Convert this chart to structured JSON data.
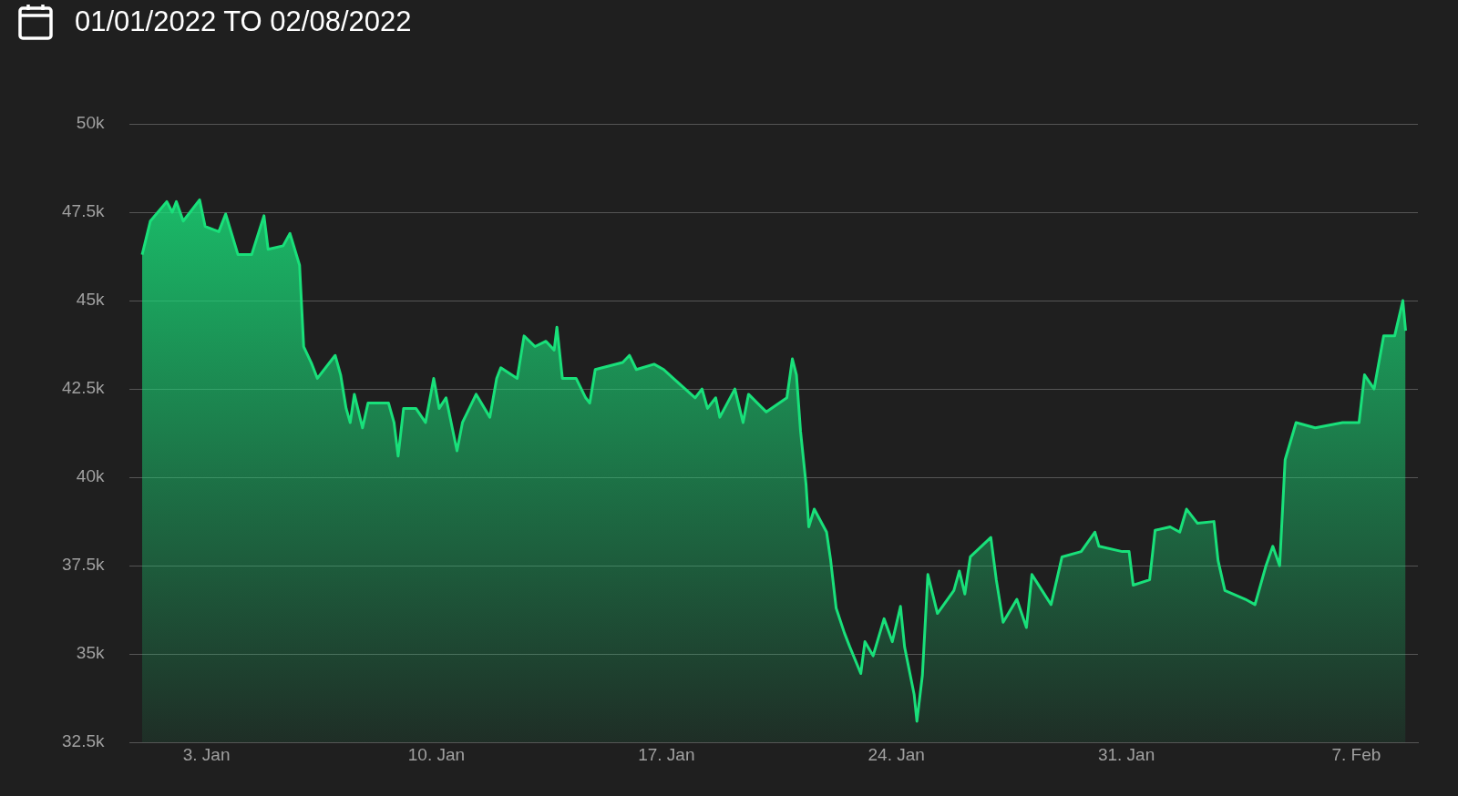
{
  "chart_data": {
    "type": "area",
    "title": "01/01/2022 TO 02/08/2022",
    "x": [
      "2022-01-01T01:00",
      "2022-01-01T07:00",
      "2022-01-01T19:00",
      "2022-01-01T23:00",
      "2022-01-02T02:00",
      "2022-01-02T07:00",
      "2022-01-02T19:00",
      "2022-01-02T23:00",
      "2022-01-03T09:00",
      "2022-01-03T14:00",
      "2022-01-03T23:00",
      "2022-01-04T09:00",
      "2022-01-04T18:00",
      "2022-01-04T21:00",
      "2022-01-05T08:00",
      "2022-01-05T13:00",
      "2022-01-05T20:00",
      "2022-01-05T23:00",
      "2022-01-06T05:00",
      "2022-01-06T09:00",
      "2022-01-06T22:00",
      "2022-01-07T02:00",
      "2022-01-07T06:00",
      "2022-01-07T09:00",
      "2022-01-07T12:00",
      "2022-01-07T18:00",
      "2022-01-07T22:00",
      "2022-01-08T13:00",
      "2022-01-08T17:00",
      "2022-01-08T20:00",
      "2022-01-09T00:00",
      "2022-01-09T09:00",
      "2022-01-09T16:00",
      "2022-01-09T22:00",
      "2022-01-10T02:00",
      "2022-01-10T07:00",
      "2022-01-10T15:00",
      "2022-01-10T19:00",
      "2022-01-11T05:00",
      "2022-01-11T15:00",
      "2022-01-11T20:00",
      "2022-01-11T23:00",
      "2022-01-12T11:00",
      "2022-01-12T16:00",
      "2022-01-13T00:00",
      "2022-01-13T08:00",
      "2022-01-13T14:00",
      "2022-01-13T16:00",
      "2022-01-13T20:00",
      "2022-01-14T06:00",
      "2022-01-14T13:00",
      "2022-01-14T16:00",
      "2022-01-14T20:00",
      "2022-01-15T16:00",
      "2022-01-15T21:00",
      "2022-01-16T02:00",
      "2022-01-16T15:00",
      "2022-01-16T22:00",
      "2022-01-17T05:00",
      "2022-01-17T21:00",
      "2022-01-18T02:00",
      "2022-01-18T06:00",
      "2022-01-18T12:00",
      "2022-01-18T15:00",
      "2022-01-19T02:00",
      "2022-01-19T08:00",
      "2022-01-19T12:00",
      "2022-01-20T01:00",
      "2022-01-20T16:00",
      "2022-01-20T20:00",
      "2022-01-20T23:00",
      "2022-01-21T02:00",
      "2022-01-21T06:00",
      "2022-01-21T08:00",
      "2022-01-21T12:00",
      "2022-01-21T21:00",
      "2022-01-22T00:00",
      "2022-01-22T04:00",
      "2022-01-22T10:00",
      "2022-01-22T14:00",
      "2022-01-22T22:00",
      "2022-01-23T01:00",
      "2022-01-23T07:00",
      "2022-01-23T15:00",
      "2022-01-23T21:00",
      "2022-01-24T03:00",
      "2022-01-24T06:00",
      "2022-01-24T13:00",
      "2022-01-24T15:00",
      "2022-01-24T19:00",
      "2022-01-24T23:00",
      "2022-01-25T06:00",
      "2022-01-25T18:00",
      "2022-01-25T22:00",
      "2022-01-26T02:00",
      "2022-01-26T06:00",
      "2022-01-26T21:00",
      "2022-01-27T01:00",
      "2022-01-27T06:00",
      "2022-01-27T16:00",
      "2022-01-27T23:00",
      "2022-01-28T03:00",
      "2022-01-28T17:00",
      "2022-01-29T01:00",
      "2022-01-29T15:00",
      "2022-01-30T01:00",
      "2022-01-30T04:00",
      "2022-01-30T21:00",
      "2022-01-31T02:00",
      "2022-01-31T05:00",
      "2022-01-31T17:00",
      "2022-01-31T21:00",
      "2022-02-01T08:00",
      "2022-02-01T15:00",
      "2022-02-01T20:00",
      "2022-02-02T04:00",
      "2022-02-02T16:00",
      "2022-02-02T19:00",
      "2022-02-03T00:00",
      "2022-02-03T15:00",
      "2022-02-03T22:00",
      "2022-02-04T06:00",
      "2022-02-04T11:00",
      "2022-02-04T16:00",
      "2022-02-04T20:00",
      "2022-02-05T04:00",
      "2022-02-05T18:00",
      "2022-02-06T14:00",
      "2022-02-07T02:00",
      "2022-02-07T06:00",
      "2022-02-07T13:00",
      "2022-02-07T20:00",
      "2022-02-08T04:00",
      "2022-02-08T10:00",
      "2022-02-08T12:00"
    ],
    "series": [
      {
        "color": "#19e07a",
        "values": [
          46300,
          47250,
          47800,
          47500,
          47800,
          47250,
          47850,
          47100,
          46950,
          47450,
          46300,
          46300,
          47400,
          46450,
          46550,
          46900,
          46000,
          43700,
          43200,
          42800,
          43450,
          42900,
          41950,
          41550,
          42350,
          41400,
          42100,
          42100,
          41550,
          40600,
          41950,
          41950,
          41550,
          42800,
          41950,
          42250,
          40750,
          41550,
          42350,
          41700,
          42800,
          43100,
          42800,
          44000,
          43700,
          43850,
          43600,
          44250,
          42800,
          42800,
          42250,
          42100,
          43050,
          43250,
          43450,
          43050,
          43200,
          43050,
          42800,
          42250,
          42500,
          41950,
          42250,
          41700,
          42500,
          41550,
          42350,
          41850,
          42250,
          43350,
          42900,
          41300,
          39800,
          38600,
          39100,
          38450,
          37650,
          36300,
          35600,
          35200,
          34450,
          35350,
          34950,
          36000,
          35350,
          36350,
          35200,
          33850,
          33100,
          34400,
          37250,
          36150,
          36800,
          37350,
          36700,
          37750,
          38300,
          37100,
          35900,
          36550,
          35750,
          37250,
          36400,
          37750,
          37900,
          38450,
          38050,
          37900,
          37900,
          36950,
          37100,
          38500,
          38600,
          38450,
          39100,
          38700,
          38750,
          37650,
          36800,
          36550,
          36400,
          37500,
          38050,
          37500,
          40500,
          41550,
          41400,
          41550,
          41550,
          42900,
          42500,
          44000,
          44000,
          45000,
          44150
        ]
      }
    ],
    "xlim": [
      "2021-12-31T16:00",
      "2022-02-08T21:00"
    ],
    "xticks": [
      {
        "value": "2022-01-03",
        "label": "3. Jan"
      },
      {
        "value": "2022-01-10",
        "label": "10. Jan"
      },
      {
        "value": "2022-01-17",
        "label": "17. Jan"
      },
      {
        "value": "2022-01-24",
        "label": "24. Jan"
      },
      {
        "value": "2022-01-31",
        "label": "31. Jan"
      },
      {
        "value": "2022-02-07",
        "label": "7. Feb"
      }
    ],
    "ylim": [
      32500,
      50000
    ],
    "yticks": [
      {
        "value": 32500,
        "label": "32.5k"
      },
      {
        "value": 35000,
        "label": "35k"
      },
      {
        "value": 37500,
        "label": "37.5k"
      },
      {
        "value": 40000,
        "label": "40k"
      },
      {
        "value": 42500,
        "label": "42.5k"
      },
      {
        "value": 45000,
        "label": "45k"
      },
      {
        "value": 47500,
        "label": "47.5k"
      },
      {
        "value": 50000,
        "label": "50k"
      }
    ],
    "grid": "y"
  }
}
